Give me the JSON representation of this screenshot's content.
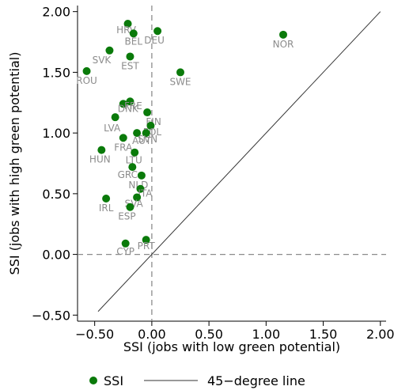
{
  "chart_data": {
    "type": "scatter",
    "xlabel": "SSI (jobs with low green potential)",
    "ylabel": "SSI (jobs with high green potential)",
    "xlim": [
      -0.65,
      2.05
    ],
    "ylim": [
      -0.55,
      2.05
    ],
    "xticks": [
      -0.5,
      0.0,
      0.5,
      1.0,
      1.5,
      2.0
    ],
    "xtick_labels": [
      "−0.50",
      "0.00",
      "0.50",
      "1.00",
      "1.50",
      "2.00"
    ],
    "yticks": [
      -0.5,
      0.0,
      0.5,
      1.0,
      1.5,
      2.0
    ],
    "ytick_labels": [
      "−0.50",
      "0.00",
      "0.50",
      "1.00",
      "1.50",
      "2.00"
    ],
    "grid": false,
    "reference_lines": {
      "x": 0,
      "y": 0,
      "style": "dashed"
    },
    "marker_color": "#0a7a0a",
    "label_color": "#8c8c8c",
    "series": [
      {
        "name": "SSI",
        "points": [
          {
            "label": "HRV",
            "x": -0.21,
            "y": 1.9
          },
          {
            "label": "BEL",
            "x": -0.16,
            "y": 1.82
          },
          {
            "label": "DEU",
            "x": 0.05,
            "y": 1.84
          },
          {
            "label": "NOR",
            "x": 1.15,
            "y": 1.81
          },
          {
            "label": "SVK",
            "x": -0.37,
            "y": 1.68
          },
          {
            "label": "EST",
            "x": -0.19,
            "y": 1.63
          },
          {
            "label": "ROU",
            "x": -0.57,
            "y": 1.51
          },
          {
            "label": "SWE",
            "x": 0.25,
            "y": 1.5
          },
          {
            "label": "DNK",
            "x": -0.25,
            "y": 1.24
          },
          {
            "label": "FRE",
            "x": -0.19,
            "y": 1.26
          },
          {
            "label": "LVA",
            "x": -0.32,
            "y": 1.13
          },
          {
            "label": "FIN",
            "x": -0.04,
            "y": 1.17
          },
          {
            "label": "POL",
            "x": -0.01,
            "y": 1.06
          },
          {
            "label": "AUT",
            "x": -0.13,
            "y": 1.0
          },
          {
            "label": "SVN",
            "x": -0.05,
            "y": 1.0
          },
          {
            "label": "FRA",
            "x": -0.25,
            "y": 0.96
          },
          {
            "label": "HUN",
            "x": -0.44,
            "y": 0.86
          },
          {
            "label": "LTU",
            "x": -0.15,
            "y": 0.84
          },
          {
            "label": "GRC",
            "x": -0.17,
            "y": 0.72
          },
          {
            "label": "NLD",
            "x": -0.09,
            "y": 0.65
          },
          {
            "label": "ITA",
            "x": -0.1,
            "y": 0.54
          },
          {
            "label": "IRL",
            "x": -0.4,
            "y": 0.46
          },
          {
            "label": "SVA",
            "x": -0.13,
            "y": 0.47
          },
          {
            "label": "ESP",
            "x": -0.19,
            "y": 0.39
          },
          {
            "label": "CYP",
            "x": -0.23,
            "y": 0.09
          },
          {
            "label": "PRT",
            "x": -0.05,
            "y": 0.12
          }
        ]
      },
      {
        "name": "45−degree line",
        "kind": "line",
        "x": [
          -0.47,
          2.0
        ],
        "y": [
          -0.47,
          2.0
        ]
      }
    ],
    "legend": {
      "placement": "bottom",
      "entries": [
        {
          "label": "SSI",
          "symbol": "marker"
        },
        {
          "label": "45−degree line",
          "symbol": "line"
        }
      ]
    }
  }
}
